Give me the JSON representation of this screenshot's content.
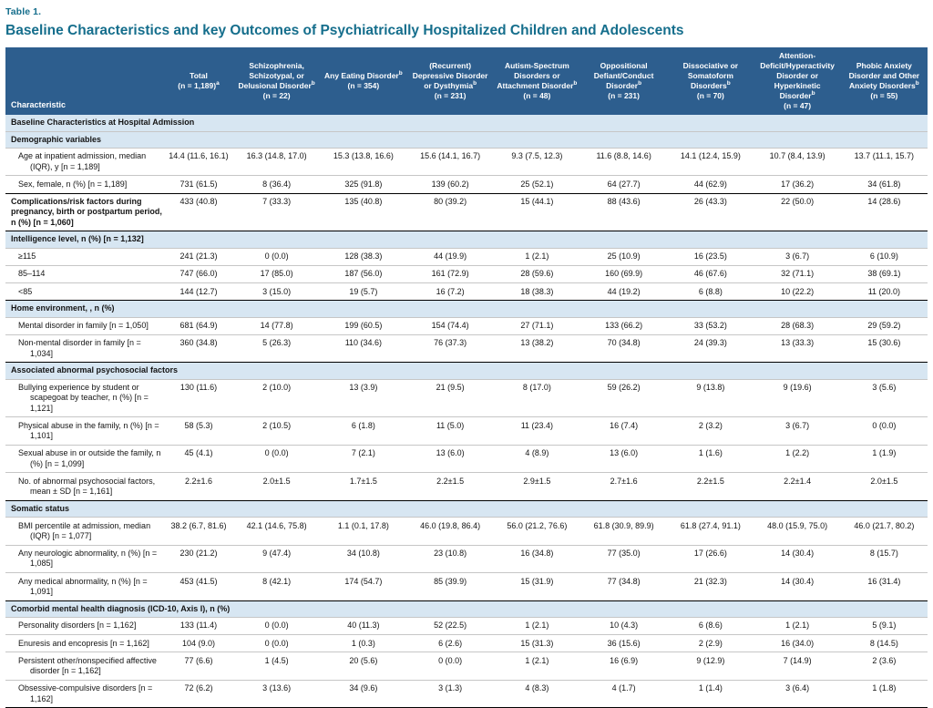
{
  "page": {
    "table_label": "Table 1.",
    "title": "Baseline Characteristics and key Outcomes of Psychiatrically Hospitalized Children and Adolescents"
  },
  "colors": {
    "accent": "#156e8c",
    "header_bg": "#2d5e8e",
    "band_bg": "#d7e6f2"
  },
  "table": {
    "columns": [
      {
        "title": "Characteristic"
      },
      {
        "title": "Total",
        "count": "(n = 1,189)",
        "count_sup": "a"
      },
      {
        "title": "Schizophrenia, Schizotypal, or Delusional Disorder",
        "title_sup": "b",
        "count": "(n = 22)"
      },
      {
        "title": "Any Eating Disorder",
        "title_sup": "b",
        "count": "(n = 354)"
      },
      {
        "title": "(Recurrent) Depressive Disorder or Dysthymia",
        "title_sup": "b",
        "count": "(n = 231)"
      },
      {
        "title": "Autism-Spectrum Disorders or Attachment Disorder",
        "title_sup": "b",
        "count": "(n = 48)"
      },
      {
        "title": "Oppositional Defiant/Conduct Disorder",
        "title_sup": "b",
        "count": "(n = 231)"
      },
      {
        "title": "Dissociative or Somatoform Disorders",
        "title_sup": "b",
        "count": "(n = 70)"
      },
      {
        "title": "Attention-Deficit/Hyperactivity Disorder or Hyperkinetic Disorder",
        "title_sup": "b",
        "count": "(n = 47)"
      },
      {
        "title": "Phobic Anxiety Disorder and Other Anxiety Disorders",
        "title_sup": "b",
        "count": "(n = 55)"
      }
    ],
    "rows": [
      {
        "type": "band",
        "label": "Baseline Characteristics at Hospital Admission"
      },
      {
        "type": "band",
        "label": "Demographic variables"
      },
      {
        "type": "data",
        "indent": 1,
        "label": "Age at inpatient admission, median (IQR), y [n = 1,189]",
        "values": [
          "14.4 (11.6, 16.1)",
          "16.3 (14.8, 17.0)",
          "15.3 (13.8, 16.6)",
          "15.6 (14.1, 16.7)",
          "9.3 (7.5, 12.3)",
          "11.6 (8.8, 14.6)",
          "14.1 (12.4, 15.9)",
          "10.7 (8.4, 13.9)",
          "13.7 (11.1, 15.7)"
        ]
      },
      {
        "type": "data",
        "indent": 1,
        "label": "Sex, female, n (%) [n = 1,189]",
        "values": [
          "731 (61.5)",
          "8 (36.4)",
          "325 (91.8)",
          "139 (60.2)",
          "25 (52.1)",
          "64 (27.7)",
          "44 (62.9)",
          "17 (36.2)",
          "34 (61.8)"
        ]
      },
      {
        "type": "data",
        "indent": 0,
        "bold": true,
        "topline": true,
        "label": "Complications/risk factors during pregnancy, birth or postpartum period, n (%) [n = 1,060]",
        "values": [
          "433 (40.8)",
          "7 (33.3)",
          "135 (40.8)",
          "80 (39.2)",
          "15 (44.1)",
          "88 (43.6)",
          "26 (43.3)",
          "22 (50.0)",
          "14 (28.6)"
        ]
      },
      {
        "type": "band",
        "topline": true,
        "label": "Intelligence level, n (%) [n = 1,132]"
      },
      {
        "type": "data",
        "indent": 1,
        "label": "≥115",
        "values": [
          "241 (21.3)",
          "0 (0.0)",
          "128 (38.3)",
          "44 (19.9)",
          "1 (2.1)",
          "25 (10.9)",
          "16 (23.5)",
          "3 (6.7)",
          "6 (10.9)"
        ]
      },
      {
        "type": "data",
        "indent": 1,
        "label": "85–114",
        "values": [
          "747 (66.0)",
          "17 (85.0)",
          "187 (56.0)",
          "161 (72.9)",
          "28 (59.6)",
          "160 (69.9)",
          "46 (67.6)",
          "32 (71.1)",
          "38 (69.1)"
        ]
      },
      {
        "type": "data",
        "indent": 1,
        "label": "<85",
        "values": [
          "144 (12.7)",
          "3 (15.0)",
          "19 (5.7)",
          "16 (7.2)",
          "18 (38.3)",
          "44 (19.2)",
          "6 (8.8)",
          "10 (22.2)",
          "11 (20.0)"
        ]
      },
      {
        "type": "band",
        "topline": true,
        "label": "Home environment, , n (%)"
      },
      {
        "type": "data",
        "indent": 1,
        "label": "Mental disorder in family [n = 1,050]",
        "values": [
          "681 (64.9)",
          "14 (77.8)",
          "199 (60.5)",
          "154 (74.4)",
          "27 (71.1)",
          "133 (66.2)",
          "33 (53.2)",
          "28 (68.3)",
          "29 (59.2)"
        ]
      },
      {
        "type": "data",
        "indent": 1,
        "label": "Non-mental disorder in family [n = 1,034]",
        "values": [
          "360 (34.8)",
          "5 (26.3)",
          "110 (34.6)",
          "76 (37.3)",
          "13 (38.2)",
          "70 (34.8)",
          "24 (39.3)",
          "13 (33.3)",
          "15 (30.6)"
        ]
      },
      {
        "type": "band",
        "topline": true,
        "label": "Associated abnormal psychosocial factors"
      },
      {
        "type": "data",
        "indent": 1,
        "label": "Bullying experience by student or scapegoat by teacher, n (%) [n = 1,121]",
        "values": [
          "130 (11.6)",
          "2 (10.0)",
          "13 (3.9)",
          "21 (9.5)",
          "8 (17.0)",
          "59 (26.2)",
          "9 (13.8)",
          "9 (19.6)",
          "3 (5.6)"
        ]
      },
      {
        "type": "data",
        "indent": 1,
        "label": "Physical abuse in the family, n (%) [n = 1,101]",
        "values": [
          "58 (5.3)",
          "2 (10.5)",
          "6 (1.8)",
          "11 (5.0)",
          "11 (23.4)",
          "16 (7.4)",
          "2 (3.2)",
          "3 (6.7)",
          "0 (0.0)"
        ]
      },
      {
        "type": "data",
        "indent": 1,
        "label": "Sexual abuse in or outside the family, n (%) [n = 1,099]",
        "values": [
          "45 (4.1)",
          "0 (0.0)",
          "7 (2.1)",
          "13 (6.0)",
          "4 (8.9)",
          "13 (6.0)",
          "1 (1.6)",
          "1 (2.2)",
          "1 (1.9)"
        ]
      },
      {
        "type": "data",
        "indent": 1,
        "label": "No. of abnormal psychosocial factors, mean ± SD [n = 1,161]",
        "values": [
          "2.2±1.6",
          "2.0±1.5",
          "1.7±1.5",
          "2.2±1.5",
          "2.9±1.5",
          "2.7±1.6",
          "2.2±1.5",
          "2.2±1.4",
          "2.0±1.5"
        ]
      },
      {
        "type": "band",
        "topline": true,
        "label": "Somatic status"
      },
      {
        "type": "data",
        "indent": 1,
        "label": "BMI percentile at admission, median (IQR) [n = 1,077]",
        "values": [
          "38.2 (6.7, 81.6)",
          "42.1 (14.6, 75.8)",
          "1.1 (0.1, 17.8)",
          "46.0 (19.8, 86.4)",
          "56.0 (21.2, 76.6)",
          "61.8 (30.9, 89.9)",
          "61.8 (27.4, 91.1)",
          "48.0 (15.9, 75.0)",
          "46.0 (21.7, 80.2)"
        ]
      },
      {
        "type": "data",
        "indent": 1,
        "label": "Any neurologic abnormality, n (%) [n = 1,085]",
        "values": [
          "230 (21.2)",
          "9 (47.4)",
          "34 (10.8)",
          "23 (10.8)",
          "16 (34.8)",
          "77 (35.0)",
          "17 (26.6)",
          "14 (30.4)",
          "8 (15.7)"
        ]
      },
      {
        "type": "data",
        "indent": 1,
        "label": "Any medical abnormality, n (%) [n = 1,091]",
        "values": [
          "453 (41.5)",
          "8 (42.1)",
          "174 (54.7)",
          "85 (39.9)",
          "15 (31.9)",
          "77 (34.8)",
          "21 (32.3)",
          "14 (30.4)",
          "16 (31.4)"
        ]
      },
      {
        "type": "band",
        "topline": true,
        "label": "Comorbid mental health diagnosis (ICD-10, Axis I), n (%)"
      },
      {
        "type": "data",
        "indent": 1,
        "label": "Personality disorders [n = 1,162]",
        "values": [
          "133 (11.4)",
          "0 (0.0)",
          "40 (11.3)",
          "52 (22.5)",
          "1 (2.1)",
          "10 (4.3)",
          "6 (8.6)",
          "1 (2.1)",
          "5 (9.1)"
        ]
      },
      {
        "type": "data",
        "indent": 1,
        "label": "Enuresis and encopresis [n = 1,162]",
        "values": [
          "104 (9.0)",
          "0 (0.0)",
          "1 (0.3)",
          "6 (2.6)",
          "15 (31.3)",
          "36 (15.6)",
          "2 (2.9)",
          "16 (34.0)",
          "8 (14.5)"
        ]
      },
      {
        "type": "data",
        "indent": 1,
        "label": "Persistent other/nonspecified affective disorder [n = 1,162]",
        "values": [
          "77 (6.6)",
          "1 (4.5)",
          "20 (5.6)",
          "0 (0.0)",
          "1 (2.1)",
          "16 (6.9)",
          "9 (12.9)",
          "7 (14.9)",
          "2 (3.6)"
        ]
      },
      {
        "type": "data",
        "indent": 1,
        "label": "Obsessive-compulsive disorders [n = 1,162]",
        "values": [
          "72 (6.2)",
          "3 (13.6)",
          "34 (9.6)",
          "3 (1.3)",
          "4 (8.3)",
          "4 (1.7)",
          "1 (1.4)",
          "3 (6.4)",
          "1 (1.8)"
        ]
      }
    ]
  }
}
